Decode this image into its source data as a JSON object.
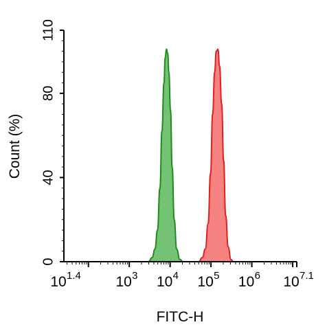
{
  "chart_data": {
    "type": "histogram",
    "xlabel": "FITC-H",
    "ylabel": "Count  (%)",
    "xscale": "log",
    "xlim_exponents": [
      1.4,
      7.1
    ],
    "ylim": [
      0,
      110
    ],
    "y_ticks": [
      "0",
      "40",
      "80",
      "110"
    ],
    "x_ticks": [
      {
        "base": "10",
        "exp": "1.4"
      },
      {
        "base": "10",
        "exp": "3"
      },
      {
        "base": "10",
        "exp": "4"
      },
      {
        "base": "10",
        "exp": "5"
      },
      {
        "base": "10",
        "exp": "6"
      },
      {
        "base": "10",
        "exp": "7.1"
      }
    ],
    "grid": false,
    "legend": "none",
    "series": [
      {
        "color": "#1f8a1f",
        "fill": "#5cb85c",
        "peak_log10": 3.93,
        "peak_y": 101,
        "points": [
          [
            3.47,
            0
          ],
          [
            3.56,
            2
          ],
          [
            3.63,
            6
          ],
          [
            3.69,
            15
          ],
          [
            3.75,
            35
          ],
          [
            3.8,
            62
          ],
          [
            3.85,
            85
          ],
          [
            3.88,
            97
          ],
          [
            3.91,
            101
          ],
          [
            3.94,
            99
          ],
          [
            3.97,
            90
          ],
          [
            4.01,
            72
          ],
          [
            4.05,
            45
          ],
          [
            4.1,
            20
          ],
          [
            4.16,
            6
          ],
          [
            4.24,
            1
          ],
          [
            4.32,
            0
          ]
        ]
      },
      {
        "color": "#e02020",
        "fill": "#f56c6c",
        "peak_log10": 5.17,
        "peak_y": 101,
        "points": [
          [
            4.7,
            0
          ],
          [
            4.79,
            2
          ],
          [
            4.86,
            6
          ],
          [
            4.93,
            18
          ],
          [
            4.99,
            42
          ],
          [
            5.04,
            70
          ],
          [
            5.09,
            90
          ],
          [
            5.13,
            100
          ],
          [
            5.17,
            101
          ],
          [
            5.21,
            93
          ],
          [
            5.26,
            75
          ],
          [
            5.31,
            48
          ],
          [
            5.36,
            22
          ],
          [
            5.42,
            7
          ],
          [
            5.49,
            1
          ],
          [
            5.55,
            0
          ]
        ]
      }
    ]
  }
}
